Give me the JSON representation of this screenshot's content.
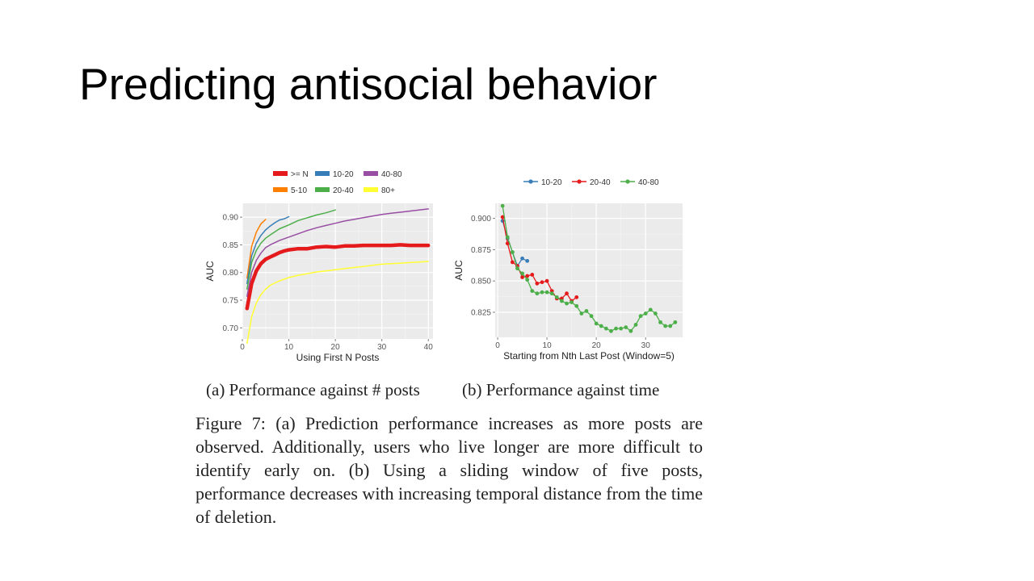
{
  "slide": {
    "title": "Predicting antisocial behavior"
  },
  "subcaptions": {
    "a": "(a) Performance against # posts",
    "b": "(b) Performance against time"
  },
  "figure_caption": "Figure 7: (a) Prediction performance increases as more posts are observed. Additionally, users who live longer are more difficult to identify early on. (b) Using a sliding window of five posts, performance decreases with increasing temporal distance from the time of deletion.",
  "chart_data": [
    {
      "type": "line",
      "xlabel": "Using First N Posts",
      "ylabel": "AUC",
      "xlim": [
        0,
        41
      ],
      "ylim": [
        0.68,
        0.925
      ],
      "xticks": [
        0,
        10,
        20,
        30,
        40
      ],
      "yticks": [
        0.7,
        0.75,
        0.8,
        0.85,
        0.9
      ],
      "ytick_labels": [
        "0.70",
        "0.75",
        "0.80",
        "0.85",
        "0.90"
      ],
      "grid": true,
      "legend_position": "top",
      "series": [
        {
          "name": ">= N",
          "color": "#e41a1c",
          "width": 4.5,
          "legend_row": 0,
          "legend_col": 0,
          "x": [
            1,
            2,
            3,
            4,
            5,
            6,
            7,
            8,
            9,
            10,
            12,
            14,
            16,
            18,
            20,
            22,
            24,
            26,
            28,
            30,
            32,
            34,
            36,
            38,
            40
          ],
          "y": [
            0.735,
            0.78,
            0.803,
            0.816,
            0.824,
            0.828,
            0.832,
            0.836,
            0.839,
            0.841,
            0.843,
            0.843,
            0.846,
            0.847,
            0.846,
            0.848,
            0.848,
            0.849,
            0.849,
            0.849,
            0.849,
            0.85,
            0.849,
            0.849,
            0.849
          ]
        },
        {
          "name": "5-10",
          "color": "#ff7f00",
          "width": 1.5,
          "legend_row": 1,
          "legend_col": 0,
          "x": [
            1,
            2,
            3,
            4,
            5
          ],
          "y": [
            0.79,
            0.847,
            0.873,
            0.888,
            0.896
          ]
        },
        {
          "name": "10-20",
          "color": "#377eb8",
          "width": 1.5,
          "legend_row": 0,
          "legend_col": 1,
          "x": [
            1,
            2,
            3,
            4,
            5,
            6,
            7,
            8,
            9,
            10
          ],
          "y": [
            0.78,
            0.83,
            0.853,
            0.867,
            0.877,
            0.884,
            0.89,
            0.895,
            0.897,
            0.901
          ]
        },
        {
          "name": "20-40",
          "color": "#4daf4a",
          "width": 1.5,
          "legend_row": 1,
          "legend_col": 1,
          "x": [
            1,
            2,
            3,
            4,
            5,
            6,
            8,
            10,
            12,
            14,
            16,
            18,
            20
          ],
          "y": [
            0.77,
            0.818,
            0.84,
            0.853,
            0.862,
            0.868,
            0.879,
            0.886,
            0.894,
            0.899,
            0.904,
            0.908,
            0.913
          ]
        },
        {
          "name": "40-80",
          "color": "#984ea3",
          "width": 1.5,
          "legend_row": 0,
          "legend_col": 2,
          "x": [
            1,
            2,
            3,
            4,
            5,
            6,
            8,
            10,
            12,
            14,
            16,
            18,
            20,
            22,
            24,
            26,
            28,
            30,
            32,
            34,
            36,
            38,
            40
          ],
          "y": [
            0.757,
            0.8,
            0.822,
            0.835,
            0.845,
            0.85,
            0.858,
            0.864,
            0.87,
            0.876,
            0.881,
            0.885,
            0.889,
            0.893,
            0.896,
            0.899,
            0.902,
            0.905,
            0.907,
            0.909,
            0.911,
            0.913,
            0.915
          ]
        },
        {
          "name": "80+",
          "color": "#ffff33",
          "width": 1.5,
          "legend_row": 1,
          "legend_col": 2,
          "x": [
            1,
            2,
            3,
            4,
            5,
            6,
            8,
            10,
            12,
            14,
            16,
            18,
            20,
            22,
            24,
            26,
            28,
            30,
            32,
            34,
            36,
            38,
            40
          ],
          "y": [
            0.672,
            0.72,
            0.745,
            0.76,
            0.77,
            0.777,
            0.785,
            0.791,
            0.795,
            0.798,
            0.801,
            0.803,
            0.805,
            0.807,
            0.809,
            0.811,
            0.813,
            0.815,
            0.816,
            0.817,
            0.818,
            0.819,
            0.82
          ]
        }
      ]
    },
    {
      "type": "line",
      "xlabel": "Starting from Nth Last Post (Window=5)",
      "ylabel": "AUC",
      "xlim": [
        -0.5,
        37.5
      ],
      "ylim": [
        0.805,
        0.912
      ],
      "xticks": [
        0,
        10,
        20,
        30
      ],
      "yticks": [
        0.825,
        0.85,
        0.875,
        0.9
      ],
      "ytick_labels": [
        "0.825",
        "0.850",
        "0.875",
        "0.900"
      ],
      "grid": true,
      "markers": true,
      "legend_position": "top",
      "series": [
        {
          "name": "10-20",
          "color": "#377eb8",
          "x": [
            1,
            2,
            3,
            4,
            5,
            6
          ],
          "y": [
            0.898,
            0.884,
            0.873,
            0.862,
            0.868,
            0.866
          ]
        },
        {
          "name": "20-40",
          "color": "#e41a1c",
          "x": [
            1,
            2,
            3,
            4,
            5,
            6,
            7,
            8,
            9,
            10,
            11,
            12,
            13,
            14,
            15,
            16
          ],
          "y": [
            0.901,
            0.88,
            0.865,
            0.862,
            0.853,
            0.854,
            0.855,
            0.848,
            0.849,
            0.85,
            0.842,
            0.836,
            0.836,
            0.84,
            0.834,
            0.837
          ]
        },
        {
          "name": "40-80",
          "color": "#4daf4a",
          "x": [
            1,
            2,
            3,
            4,
            5,
            6,
            7,
            8,
            9,
            10,
            11,
            12,
            13,
            14,
            15,
            16,
            17,
            18,
            19,
            20,
            21,
            22,
            23,
            24,
            25,
            26,
            27,
            28,
            29,
            30,
            31,
            32,
            33,
            34,
            35,
            36
          ],
          "y": [
            0.91,
            0.885,
            0.873,
            0.86,
            0.856,
            0.851,
            0.842,
            0.84,
            0.841,
            0.841,
            0.84,
            0.837,
            0.834,
            0.832,
            0.833,
            0.83,
            0.824,
            0.826,
            0.822,
            0.816,
            0.814,
            0.812,
            0.81,
            0.812,
            0.812,
            0.813,
            0.81,
            0.815,
            0.822,
            0.824,
            0.827,
            0.824,
            0.817,
            0.814,
            0.814,
            0.817
          ]
        }
      ]
    }
  ]
}
